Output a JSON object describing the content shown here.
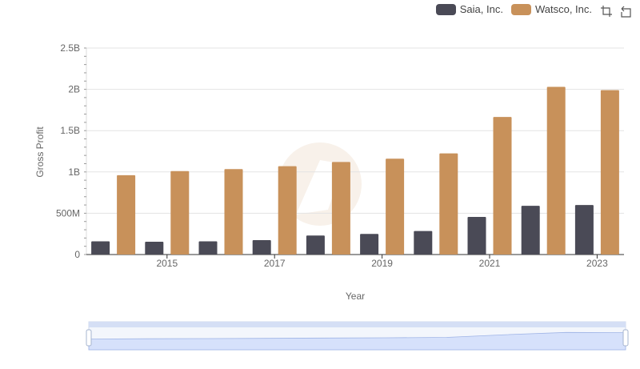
{
  "chart_data": {
    "type": "bar",
    "categories": [
      "2014",
      "2015",
      "2016",
      "2017",
      "2018",
      "2019",
      "2020",
      "2021",
      "2022",
      "2023"
    ],
    "series": [
      {
        "name": "Saia, Inc.",
        "color": "#4a4a56",
        "values": [
          160000000,
          155000000,
          160000000,
          175000000,
          230000000,
          250000000,
          285000000,
          455000000,
          590000000,
          600000000
        ]
      },
      {
        "name": "Watsco, Inc.",
        "color": "#c8915a",
        "values": [
          960000000,
          1010000000,
          1035000000,
          1070000000,
          1120000000,
          1160000000,
          1225000000,
          1665000000,
          2030000000,
          1990000000
        ]
      }
    ],
    "xtick_labels": [
      "2015",
      "2017",
      "2019",
      "2021",
      "2023"
    ],
    "ytick_labels": [
      "0",
      "500M",
      "1B",
      "1.5B",
      "2B",
      "2.5B"
    ],
    "ylim": [
      0,
      2500000000
    ],
    "xlabel": "Year",
    "ylabel": "Gross Profit",
    "grid": true,
    "legend_position": "top-right"
  },
  "toolbar": {
    "restore_icon": "restore-icon",
    "zoom_icon": "zoom-icon"
  },
  "datazoom": {
    "start_percent": 0,
    "end_percent": 100
  }
}
